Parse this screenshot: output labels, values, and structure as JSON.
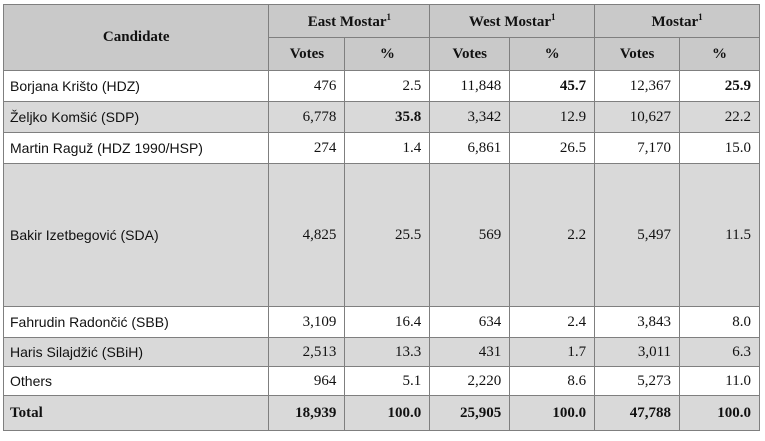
{
  "table": {
    "header": {
      "candidate": "Candidate",
      "groups": [
        {
          "label": "East Mostar",
          "note": "1"
        },
        {
          "label": "West Mostar",
          "note": "1"
        },
        {
          "label": "Mostar",
          "note": "1"
        }
      ],
      "subheaders": [
        "Votes",
        "%"
      ]
    },
    "rows": [
      {
        "candidate": "Borjana Krišto (HDZ)",
        "values": [
          "476",
          "2.5",
          "11,848",
          "45.7",
          "12,367",
          "25.9"
        ],
        "bold": [
          3,
          5
        ]
      },
      {
        "candidate": "Željko Komšić (SDP)",
        "values": [
          "6,778",
          "35.8",
          "3,342",
          "12.9",
          "10,627",
          "22.2"
        ],
        "bold": [
          1
        ]
      },
      {
        "candidate": "Martin Raguž (HDZ 1990/HSP)",
        "values": [
          "274",
          "1.4",
          "6,861",
          "26.5",
          "7,170",
          "15.0"
        ],
        "bold": []
      },
      {
        "candidate": "Bakir Izetbegović (SDA)",
        "values": [
          "4,825",
          "25.5",
          "569",
          "2.2",
          "5,497",
          "11.5"
        ],
        "bold": []
      },
      {
        "candidate": "Fahrudin Radončić (SBB)",
        "values": [
          "3,109",
          "16.4",
          "634",
          "2.4",
          "3,843",
          "8.0"
        ],
        "bold": []
      },
      {
        "candidate": "Haris Silajdžić (SBiH)",
        "values": [
          "2,513",
          "13.3",
          "431",
          "1.7",
          "3,011",
          "6.3"
        ],
        "bold": []
      },
      {
        "candidate": "Others",
        "values": [
          "964",
          "5.1",
          "2,220",
          "8.6",
          "5,273",
          "11.0"
        ],
        "bold": []
      }
    ],
    "total": {
      "candidate": "Total",
      "values": [
        "18,939",
        "100.0",
        "25,905",
        "100.0",
        "47,788",
        "100.0"
      ]
    }
  }
}
